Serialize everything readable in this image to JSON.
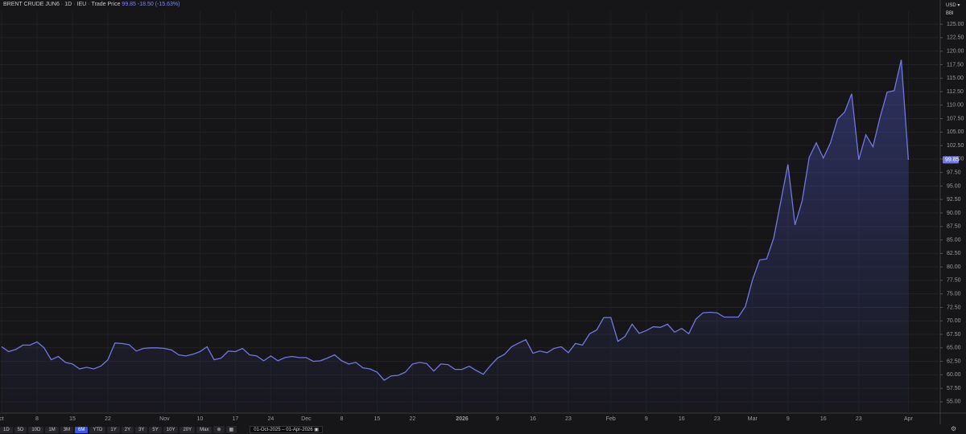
{
  "header": {
    "symbol": "BRENT CRUDE JUN6",
    "interval": "1D",
    "exchange": "IEU",
    "field": "Trade Price",
    "price": "99.85",
    "change": "-18.50 (-15.63%)"
  },
  "axis_menu": {
    "currency": "USD",
    "unit": "BBl"
  },
  "chart_data": {
    "type": "area",
    "color": "#6f78e0",
    "grid": true,
    "categories": [
      "ct",
      null,
      null,
      null,
      null,
      "8",
      null,
      null,
      null,
      null,
      "15",
      null,
      null,
      null,
      null,
      "22",
      null,
      null,
      null,
      null,
      null,
      null,
      null,
      "Nov",
      null,
      null,
      null,
      null,
      "10",
      null,
      null,
      null,
      null,
      "17",
      null,
      null,
      null,
      null,
      "24",
      null,
      null,
      null,
      null,
      "Dec",
      null,
      null,
      null,
      null,
      "8",
      null,
      null,
      null,
      null,
      "15",
      null,
      null,
      null,
      null,
      "22",
      null,
      null,
      null,
      null,
      null,
      null,
      "2026",
      null,
      null,
      null,
      null,
      "9",
      null,
      null,
      null,
      null,
      "16",
      null,
      null,
      null,
      null,
      "23",
      null,
      null,
      null,
      null,
      null,
      "Feb",
      null,
      null,
      null,
      null,
      "9",
      null,
      null,
      null,
      null,
      "16",
      null,
      null,
      null,
      null,
      "23",
      null,
      null,
      null,
      null,
      "Mar",
      null,
      null,
      null,
      null,
      "9",
      null,
      null,
      null,
      null,
      "16",
      null,
      null,
      null,
      null,
      "23",
      null,
      null,
      null,
      null,
      null,
      null,
      "Apr"
    ],
    "values": [
      65.2,
      64.3,
      64.7,
      65.5,
      65.5,
      66.1,
      65.0,
      62.8,
      63.4,
      62.3,
      62.0,
      61.1,
      61.4,
      61.1,
      61.6,
      62.8,
      65.9,
      65.8,
      65.6,
      64.4,
      64.9,
      65.0,
      65.0,
      64.9,
      64.6,
      63.7,
      63.5,
      63.8,
      64.3,
      65.2,
      62.8,
      63.1,
      64.4,
      64.3,
      64.9,
      63.7,
      63.5,
      62.6,
      63.5,
      62.6,
      63.2,
      63.4,
      63.2,
      63.2,
      62.5,
      62.6,
      63.1,
      63.7,
      62.6,
      62.0,
      62.3,
      61.3,
      61.1,
      60.5,
      59.0,
      59.8,
      59.9,
      60.5,
      62.0,
      62.3,
      62.1,
      60.7,
      62.0,
      61.9,
      61.0,
      61.0,
      61.6,
      60.8,
      60.1,
      61.7,
      63.1,
      63.8,
      65.2,
      65.9,
      66.5,
      64.0,
      64.4,
      64.1,
      64.9,
      65.2,
      64.1,
      65.8,
      65.5,
      67.6,
      68.3,
      70.6,
      70.6,
      66.2,
      67.1,
      69.4,
      67.7,
      68.2,
      68.9,
      68.8,
      69.4,
      67.9,
      68.6,
      67.6,
      70.3,
      71.5,
      71.6,
      71.5,
      70.7,
      70.7,
      70.7,
      72.7,
      77.6,
      81.3,
      81.5,
      85.4,
      92.2,
      99.0,
      87.8,
      92.2,
      100.3,
      103.0,
      100.2,
      103.0,
      107.4,
      108.7,
      112.1,
      99.9,
      104.5,
      102.3,
      107.7,
      112.4,
      112.7,
      118.4,
      99.85
    ],
    "ylim": [
      52.9,
      127.4
    ],
    "yticks": [
      {
        "value": 55,
        "label": "55.00"
      },
      {
        "value": 57.5,
        "label": "57.50"
      },
      {
        "value": 60,
        "label": "60.00"
      },
      {
        "value": 62.5,
        "label": "62.50"
      },
      {
        "value": 65,
        "label": "65.00"
      },
      {
        "value": 67.5,
        "label": "67.50"
      },
      {
        "value": 70,
        "label": "70.00"
      },
      {
        "value": 72.5,
        "label": "72.50"
      },
      {
        "value": 75,
        "label": "75.00"
      },
      {
        "value": 77.5,
        "label": "77.50"
      },
      {
        "value": 80,
        "label": "80.00"
      },
      {
        "value": 82.5,
        "label": "82.50"
      },
      {
        "value": 85,
        "label": "85.00"
      },
      {
        "value": 87.5,
        "label": "87.50"
      },
      {
        "value": 90,
        "label": "90.00"
      },
      {
        "value": 92.5,
        "label": "92.50"
      },
      {
        "value": 95,
        "label": "95.00"
      },
      {
        "value": 97.5,
        "label": "97.50"
      },
      {
        "value": 100,
        "label": "100.00"
      },
      {
        "value": 102.5,
        "label": "102.50"
      },
      {
        "value": 105,
        "label": "105.00"
      },
      {
        "value": 107.5,
        "label": "107.50"
      },
      {
        "value": 110,
        "label": "110.00"
      },
      {
        "value": 112.5,
        "label": "112.50"
      },
      {
        "value": 115,
        "label": "115.00"
      },
      {
        "value": 117.5,
        "label": "117.50"
      },
      {
        "value": 120,
        "label": "120.00"
      },
      {
        "value": 122.5,
        "label": "122.50"
      },
      {
        "value": 125,
        "label": "125.00"
      }
    ]
  },
  "toolbar": {
    "ranges": [
      "1D",
      "5D",
      "10D",
      "1M",
      "3M",
      "6M",
      "YTD",
      "1Y",
      "2Y",
      "3Y",
      "5Y",
      "10Y",
      "20Y",
      "Max"
    ],
    "active_range": 5,
    "date_from": "01-Oct-2025",
    "date_to": "01-Apr-2026"
  }
}
